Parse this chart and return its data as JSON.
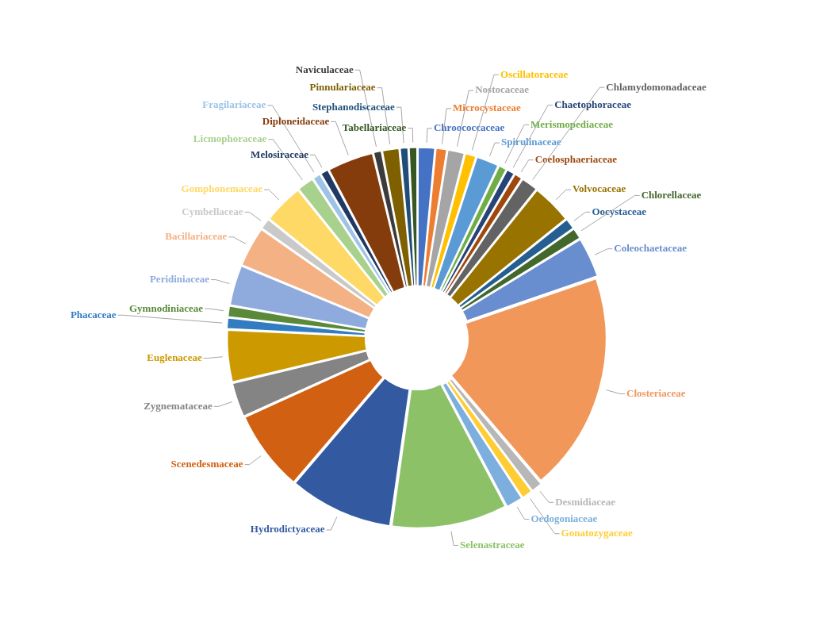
{
  "chart_data": {
    "type": "donut",
    "legend": false,
    "categories": [
      "Chroococcaceae",
      "Microcystaceae",
      "Nostocaceae",
      "Oscillatoraceae",
      "Spirulinaceae",
      "Merismopediaceae",
      "Chaetophoraceae",
      "Coelosphaeriaceae",
      "Chlamydomonadaceae",
      "Volvocaceae",
      "Oocystaceae",
      "Chlorellaceae",
      "Coleochaetaceae",
      "Closteriaceae",
      "Desmidiaceae",
      "Gonatozygaceae",
      "Oedogoniaceae",
      "Selenastraceae",
      "Hydrodictyaceae",
      "Scenedesmaceae",
      "Zygnemataceae",
      "Euglenaceae",
      "Phacaceae",
      "Gymnodiniaceae",
      "Peridiniaceae",
      "Bacillariaceae",
      "Cymbellaceae",
      "Gomphonemaceae",
      "Licmophoraceae",
      "Fragilariaceae",
      "Melosiraceae",
      "Diploneidaceae",
      "Naviculaceae",
      "Pinnulariaceae",
      "Stephanodiscaceae",
      "Tabellariaceae"
    ],
    "values": [
      1.5,
      1,
      1.5,
      1,
      2,
      0.75,
      0.75,
      0.75,
      1.5,
      3.5,
      1,
      1,
      3.5,
      19,
      1,
      1,
      1.5,
      10,
      9,
      7,
      3,
      4.5,
      1,
      1,
      3.5,
      3.5,
      1,
      3.5,
      1.5,
      0.75,
      0.75,
      4,
      0.75,
      1.5,
      0.75,
      0.75
    ],
    "colors": [
      "#4472c4",
      "#ed7d31",
      "#a5a5a5",
      "#ffc000",
      "#5b9bd5",
      "#70ad47",
      "#264478",
      "#9e480e",
      "#636363",
      "#997300",
      "#255e91",
      "#43682b",
      "#698ed0",
      "#f1975a",
      "#b7b7b7",
      "#ffcd33",
      "#7cafdd",
      "#8cc168",
      "#335aa1",
      "#d26012",
      "#848484",
      "#cc9a00",
      "#327dc2",
      "#5a8a39",
      "#8faadc",
      "#f4b183",
      "#c9c9c9",
      "#ffd966",
      "#a9d18e",
      "#9dc3e6",
      "#203864",
      "#843c0c",
      "#3b3b3b",
      "#7f6000",
      "#1f4e79",
      "#375623"
    ]
  }
}
